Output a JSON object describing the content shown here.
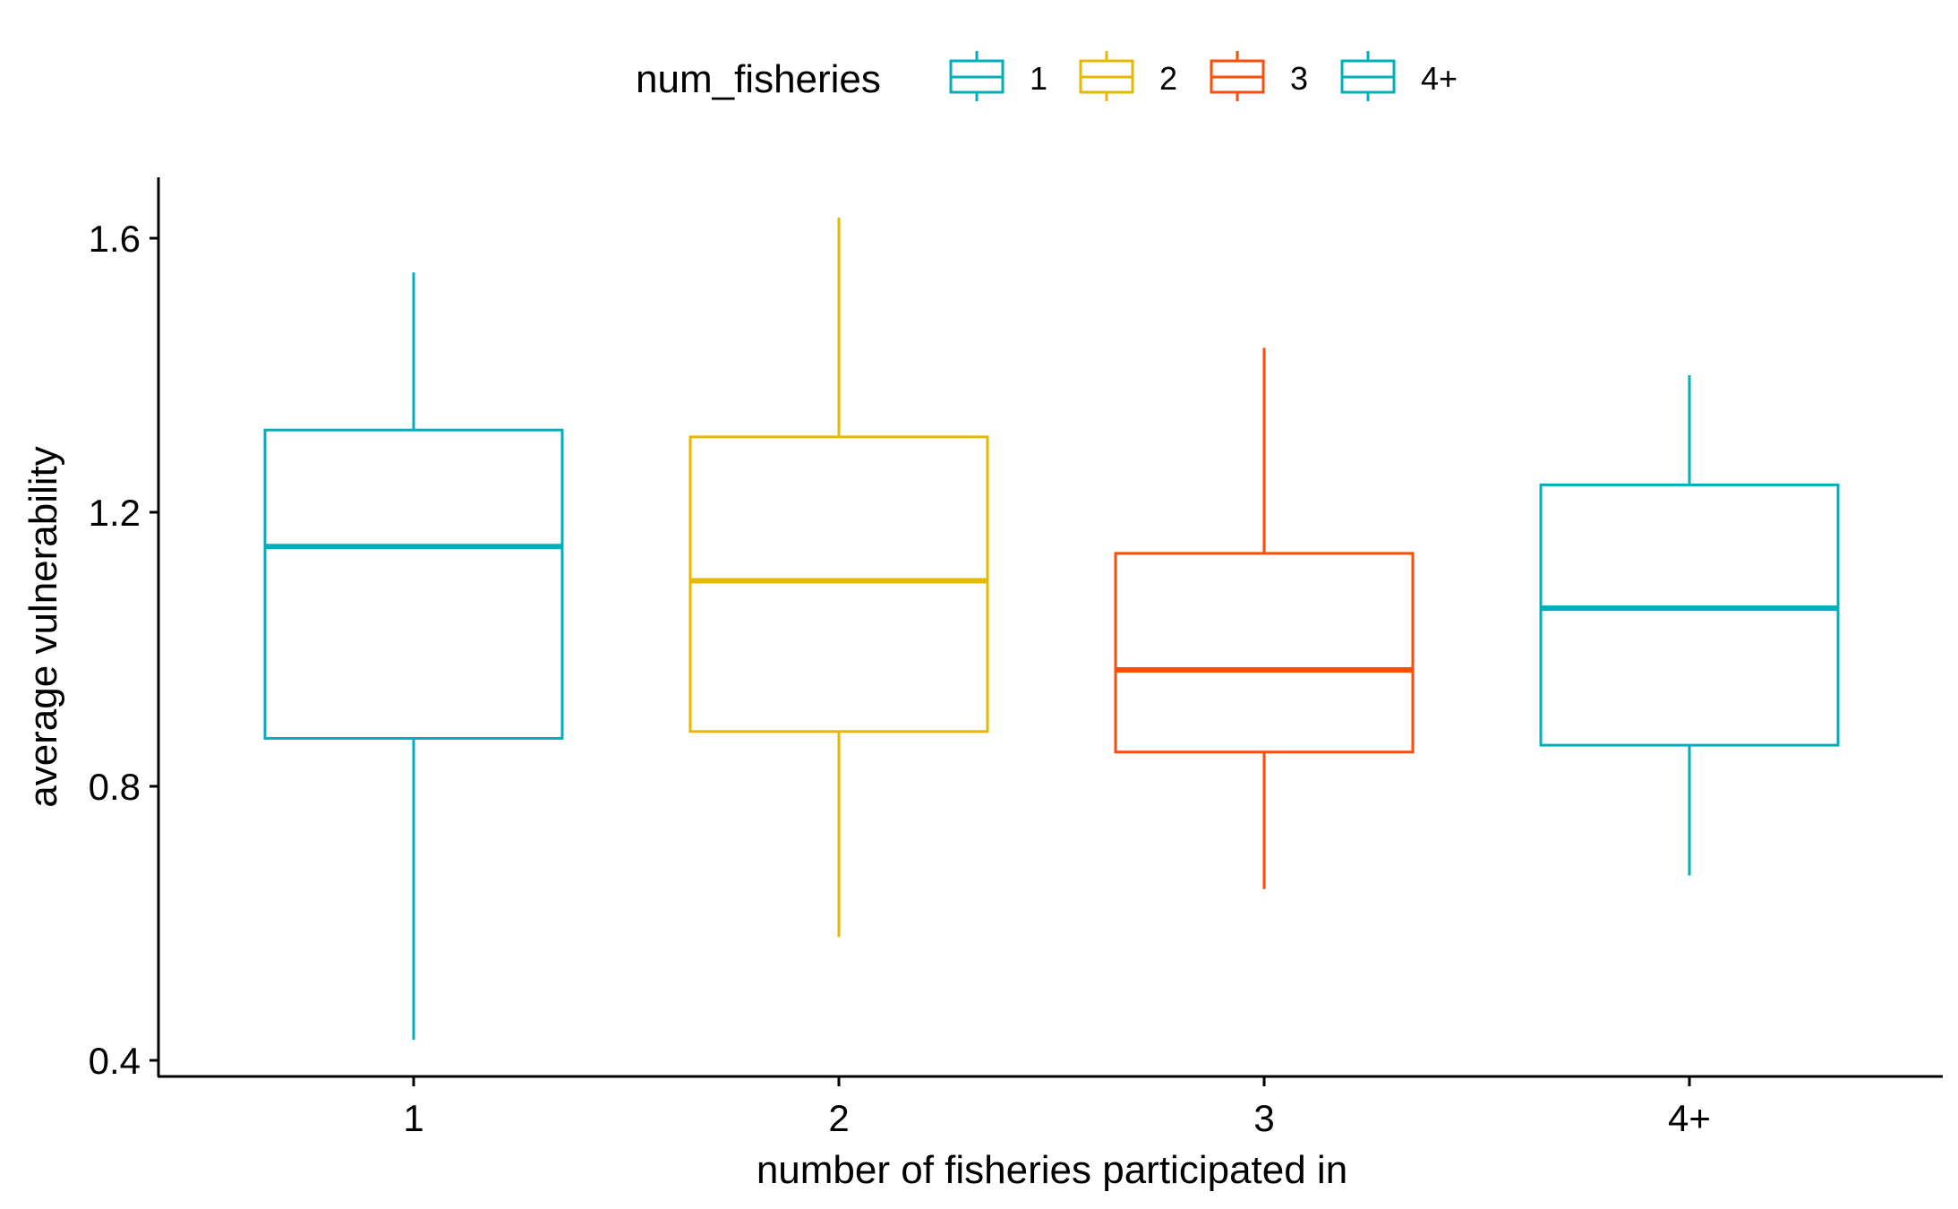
{
  "chart_data": {
    "type": "boxplot",
    "title": "",
    "xlabel": "number of fisheries participated in",
    "ylabel": "average vulnerability",
    "ylim": [
      0.38,
      1.68
    ],
    "yticks": [
      0.4,
      0.8,
      1.2,
      1.6
    ],
    "ytick_labels": [
      "0.4",
      "0.8",
      "1.2",
      "1.6"
    ],
    "categories": [
      "1",
      "2",
      "3",
      "4+"
    ],
    "legend": {
      "title": "num_fisheries",
      "placement": "top",
      "entries": [
        "1",
        "2",
        "3",
        "4+"
      ]
    },
    "colors": [
      "#00AFBB",
      "#E7B800",
      "#FC4E07",
      "#00AFBB"
    ],
    "boxes": [
      {
        "category": "1",
        "min": 0.43,
        "q1": 0.87,
        "median": 1.15,
        "q3": 1.32,
        "max": 1.55
      },
      {
        "category": "2",
        "min": 0.58,
        "q1": 0.88,
        "median": 1.1,
        "q3": 1.31,
        "max": 1.63
      },
      {
        "category": "3",
        "min": 0.65,
        "q1": 0.85,
        "median": 0.97,
        "q3": 1.14,
        "max": 1.44
      },
      {
        "category": "4+",
        "min": 0.67,
        "q1": 0.86,
        "median": 1.06,
        "q3": 1.24,
        "max": 1.4
      }
    ]
  }
}
